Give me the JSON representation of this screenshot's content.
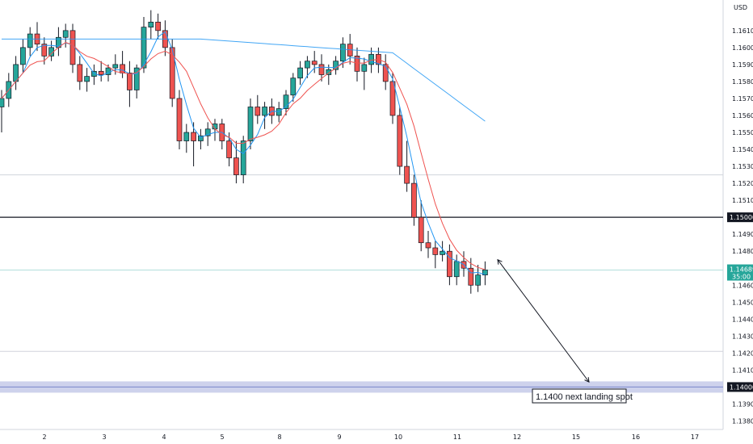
{
  "chart_data": {
    "type": "candlestick",
    "title": "",
    "currency_label": "USD",
    "y_ticks": [
      "1.16100",
      "1.16000",
      "1.15900",
      "1.15800",
      "1.15700",
      "1.15600",
      "1.15500",
      "1.15400",
      "1.15300",
      "1.15200",
      "1.15100",
      "1.15000",
      "1.14900",
      "1.14800",
      "1.14700",
      "1.14600",
      "1.14500",
      "1.14400",
      "1.14300",
      "1.14200",
      "1.14100",
      "1.14000",
      "1.13900",
      "1.13800"
    ],
    "y_range": [
      1.1375,
      1.1628
    ],
    "x_ticks": [
      "2",
      "3",
      "4",
      "5",
      "8",
      "9",
      "10",
      "11",
      "12",
      "15",
      "16",
      "17"
    ],
    "levels": [
      {
        "name": "resistance",
        "value": 1.15,
        "label": "1.15000",
        "color": "#131722"
      },
      {
        "name": "support-zone",
        "value": 1.14,
        "label": "1.14000",
        "color": "#9fa8da"
      },
      {
        "name": "upper-guide",
        "value": 1.1525,
        "color": "#d1d4dc"
      },
      {
        "name": "lower-guide",
        "value": 1.1421,
        "color": "#d1d4dc"
      }
    ],
    "current_price": {
      "value": "1.14689",
      "countdown": "35:00",
      "color": "#26a69a"
    },
    "series": [
      {
        "name": "",
        "color": "#2196f3"
      },
      {
        "name": "",
        "color": "#f44336"
      },
      {
        "name": "",
        "color": "#ef5350"
      }
    ],
    "ohlc": [
      [
        1.1565,
        1.1575,
        1.155,
        1.157
      ],
      [
        1.157,
        1.1585,
        1.1565,
        1.158
      ],
      [
        1.158,
        1.1595,
        1.1575,
        1.159
      ],
      [
        1.159,
        1.1605,
        1.1585,
        1.16
      ],
      [
        1.16,
        1.1612,
        1.1595,
        1.1608
      ],
      [
        1.1608,
        1.1615,
        1.1598,
        1.1602
      ],
      [
        1.1602,
        1.1606,
        1.159,
        1.1595
      ],
      [
        1.1595,
        1.1604,
        1.1592,
        1.16
      ],
      [
        1.16,
        1.1612,
        1.1595,
        1.1606
      ],
      [
        1.1606,
        1.1614,
        1.16,
        1.161
      ],
      [
        1.161,
        1.1614,
        1.1585,
        1.159
      ],
      [
        1.159,
        1.1595,
        1.1575,
        1.158
      ],
      [
        1.158,
        1.1588,
        1.1574,
        1.1583
      ],
      [
        1.1583,
        1.159,
        1.1578,
        1.1586
      ],
      [
        1.1586,
        1.1592,
        1.158,
        1.1584
      ],
      [
        1.1584,
        1.159,
        1.158,
        1.1588
      ],
      [
        1.1588,
        1.1596,
        1.1584,
        1.159
      ],
      [
        1.159,
        1.1598,
        1.1582,
        1.1585
      ],
      [
        1.1585,
        1.1592,
        1.1565,
        1.1575
      ],
      [
        1.1575,
        1.159,
        1.157,
        1.1588
      ],
      [
        1.1588,
        1.1618,
        1.1585,
        1.1612
      ],
      [
        1.1612,
        1.1622,
        1.1605,
        1.1615
      ],
      [
        1.1615,
        1.162,
        1.1605,
        1.161
      ],
      [
        1.161,
        1.1616,
        1.1595,
        1.16
      ],
      [
        1.16,
        1.1605,
        1.1565,
        1.157
      ],
      [
        1.157,
        1.1575,
        1.154,
        1.1545
      ],
      [
        1.1545,
        1.1555,
        1.1538,
        1.155
      ],
      [
        1.155,
        1.1556,
        1.153,
        1.1545
      ],
      [
        1.1545,
        1.1552,
        1.154,
        1.1548
      ],
      [
        1.1548,
        1.1556,
        1.1542,
        1.1552
      ],
      [
        1.1552,
        1.1558,
        1.1545,
        1.1555
      ],
      [
        1.1555,
        1.1558,
        1.154,
        1.1545
      ],
      [
        1.1545,
        1.155,
        1.153,
        1.1535
      ],
      [
        1.1535,
        1.1545,
        1.152,
        1.1525
      ],
      [
        1.1525,
        1.1548,
        1.152,
        1.1545
      ],
      [
        1.1545,
        1.157,
        1.154,
        1.1565
      ],
      [
        1.1565,
        1.1572,
        1.1555,
        1.156
      ],
      [
        1.156,
        1.1568,
        1.1552,
        1.1565
      ],
      [
        1.1565,
        1.157,
        1.1555,
        1.156
      ],
      [
        1.156,
        1.1568,
        1.1556,
        1.1564
      ],
      [
        1.1564,
        1.1575,
        1.156,
        1.1572
      ],
      [
        1.1572,
        1.1585,
        1.1568,
        1.1582
      ],
      [
        1.1582,
        1.1592,
        1.1578,
        1.1588
      ],
      [
        1.1588,
        1.1595,
        1.1582,
        1.1592
      ],
      [
        1.1592,
        1.1598,
        1.1585,
        1.159
      ],
      [
        1.159,
        1.1596,
        1.158,
        1.1584
      ],
      [
        1.1584,
        1.159,
        1.1578,
        1.1587
      ],
      [
        1.1587,
        1.1595,
        1.1584,
        1.1592
      ],
      [
        1.1592,
        1.1606,
        1.1588,
        1.1602
      ],
      [
        1.1602,
        1.1608,
        1.159,
        1.1595
      ],
      [
        1.1595,
        1.16,
        1.158,
        1.1586
      ],
      [
        1.1586,
        1.1594,
        1.1575,
        1.159
      ],
      [
        1.159,
        1.16,
        1.1585,
        1.1596
      ],
      [
        1.1596,
        1.16,
        1.1585,
        1.159
      ],
      [
        1.159,
        1.1596,
        1.1575,
        1.158
      ],
      [
        1.158,
        1.1585,
        1.1555,
        1.156
      ],
      [
        1.156,
        1.1565,
        1.1525,
        1.153
      ],
      [
        1.153,
        1.1545,
        1.1515,
        1.152
      ],
      [
        1.152,
        1.1525,
        1.1495,
        1.15
      ],
      [
        1.15,
        1.151,
        1.148,
        1.1485
      ],
      [
        1.1485,
        1.1492,
        1.1476,
        1.1482
      ],
      [
        1.1482,
        1.1486,
        1.147,
        1.1478
      ],
      [
        1.1478,
        1.1486,
        1.1474,
        1.148
      ],
      [
        1.148,
        1.1484,
        1.146,
        1.1465
      ],
      [
        1.1465,
        1.1478,
        1.146,
        1.1474
      ],
      [
        1.1474,
        1.148,
        1.1465,
        1.147
      ],
      [
        1.147,
        1.1476,
        1.1455,
        1.146
      ],
      [
        1.146,
        1.1472,
        1.1456,
        1.1466
      ],
      [
        1.1466,
        1.1474,
        1.146,
        1.1469
      ]
    ],
    "annotation": {
      "text": "1.1400 next landing spot",
      "arrow_from": [
        68,
        1.1475
      ],
      "arrow_to": [
        92,
        1.1403
      ]
    }
  }
}
